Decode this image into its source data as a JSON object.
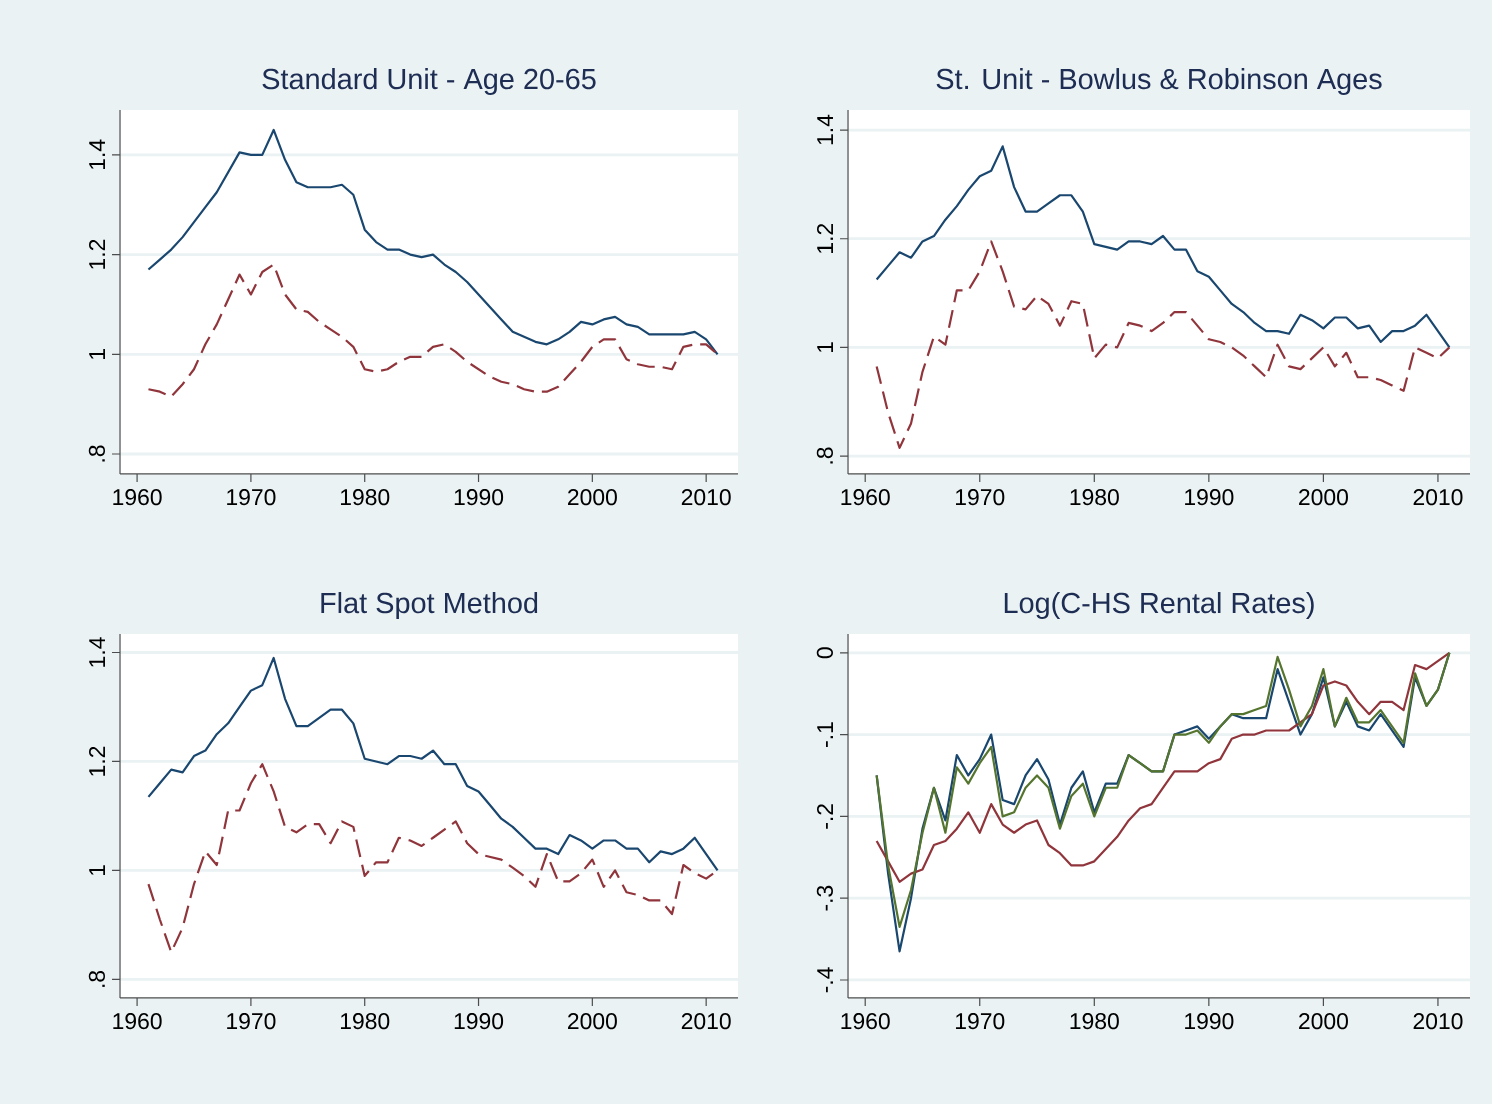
{
  "chart_data": [
    {
      "type": "line",
      "title": "Standard Unit - Age 20-65",
      "x": [
        1961,
        1962,
        1963,
        1964,
        1965,
        1966,
        1967,
        1968,
        1969,
        1970,
        1971,
        1972,
        1973,
        1974,
        1975,
        1976,
        1977,
        1978,
        1979,
        1980,
        1981,
        1982,
        1983,
        1984,
        1985,
        1986,
        1987,
        1988,
        1989,
        1990,
        1991,
        1992,
        1993,
        1994,
        1995,
        1996,
        1997,
        1998,
        1999,
        2000,
        2001,
        2002,
        2003,
        2004,
        2005,
        2006,
        2007,
        2008,
        2009,
        2010,
        2011
      ],
      "xlim": [
        1958.5,
        2012.8
      ],
      "xticks": [
        1960,
        1970,
        1980,
        1990,
        2000,
        2010
      ],
      "ylim": [
        0.76,
        1.49
      ],
      "yticks": [
        {
          "value": 0.8,
          "label": ".8"
        },
        1,
        1.2,
        1.4
      ],
      "grid": "y",
      "series": [
        {
          "color": "#1a476f",
          "line_style": "solid",
          "values": [
            1.17,
            1.19,
            1.21,
            1.235,
            1.265,
            1.295,
            1.325,
            1.365,
            1.405,
            1.4,
            1.4,
            1.45,
            1.39,
            1.345,
            1.335,
            1.335,
            1.335,
            1.34,
            1.32,
            1.25,
            1.225,
            1.21,
            1.21,
            1.2,
            1.195,
            1.2,
            1.18,
            1.165,
            1.145,
            1.12,
            1.095,
            1.07,
            1.045,
            1.035,
            1.025,
            1.02,
            1.03,
            1.045,
            1.065,
            1.06,
            1.07,
            1.075,
            1.06,
            1.055,
            1.04,
            1.04,
            1.04,
            1.04,
            1.045,
            1.03,
            1.0
          ]
        },
        {
          "color": "#90353b",
          "line_style": "dashed",
          "values": [
            0.93,
            0.925,
            0.915,
            0.94,
            0.97,
            1.02,
            1.06,
            1.11,
            1.16,
            1.12,
            1.165,
            1.18,
            1.12,
            1.09,
            1.085,
            1.065,
            1.05,
            1.035,
            1.015,
            0.97,
            0.965,
            0.97,
            0.985,
            0.995,
            0.995,
            1.015,
            1.02,
            1.005,
            0.985,
            0.97,
            0.955,
            0.945,
            0.94,
            0.93,
            0.925,
            0.925,
            0.935,
            0.96,
            0.985,
            1.015,
            1.03,
            1.03,
            0.99,
            0.98,
            0.975,
            0.975,
            0.97,
            1.015,
            1.02,
            1.02,
            1.0
          ]
        }
      ]
    },
    {
      "type": "line",
      "title": "St. Unit - Bowlus & Robinson Ages",
      "x": [
        1961,
        1962,
        1963,
        1964,
        1965,
        1966,
        1967,
        1968,
        1969,
        1970,
        1971,
        1972,
        1973,
        1974,
        1975,
        1976,
        1977,
        1978,
        1979,
        1980,
        1981,
        1982,
        1983,
        1984,
        1985,
        1986,
        1987,
        1988,
        1989,
        1990,
        1991,
        1992,
        1993,
        1994,
        1995,
        1996,
        1997,
        1998,
        1999,
        2000,
        2001,
        2002,
        2003,
        2004,
        2005,
        2006,
        2007,
        2008,
        2009,
        2010,
        2011
      ],
      "xlim": [
        1958.5,
        2012.8
      ],
      "xticks": [
        1960,
        1970,
        1980,
        1990,
        2000,
        2010
      ],
      "ylim": [
        0.767,
        1.437
      ],
      "yticks": [
        {
          "value": 0.8,
          "label": ".8"
        },
        1,
        1.2,
        1.4
      ],
      "grid": "y",
      "series": [
        {
          "color": "#1a476f",
          "line_style": "solid",
          "values": [
            1.125,
            1.15,
            1.175,
            1.165,
            1.195,
            1.205,
            1.235,
            1.26,
            1.29,
            1.315,
            1.325,
            1.37,
            1.295,
            1.25,
            1.25,
            1.265,
            1.28,
            1.28,
            1.25,
            1.19,
            1.185,
            1.18,
            1.195,
            1.195,
            1.19,
            1.205,
            1.18,
            1.18,
            1.14,
            1.13,
            1.105,
            1.08,
            1.065,
            1.045,
            1.03,
            1.03,
            1.025,
            1.06,
            1.05,
            1.035,
            1.055,
            1.055,
            1.035,
            1.04,
            1.01,
            1.03,
            1.03,
            1.04,
            1.06,
            1.03,
            1.0
          ]
        },
        {
          "color": "#90353b",
          "line_style": "dashed",
          "values": [
            0.965,
            0.88,
            0.815,
            0.86,
            0.955,
            1.02,
            1.005,
            1.105,
            1.105,
            1.14,
            1.195,
            1.14,
            1.075,
            1.07,
            1.095,
            1.08,
            1.04,
            1.085,
            1.08,
            0.98,
            1.005,
            1.0,
            1.045,
            1.04,
            1.03,
            1.045,
            1.065,
            1.065,
            1.04,
            1.015,
            1.01,
            1.0,
            0.985,
            0.965,
            0.945,
            1.005,
            0.965,
            0.96,
            0.98,
            1.0,
            0.965,
            0.99,
            0.945,
            0.945,
            0.94,
            0.93,
            0.92,
            1.0,
            0.99,
            0.98,
            1.0
          ]
        }
      ]
    },
    {
      "type": "line",
      "title": "Flat Spot Method",
      "x": [
        1961,
        1962,
        1963,
        1964,
        1965,
        1966,
        1967,
        1968,
        1969,
        1970,
        1971,
        1972,
        1973,
        1974,
        1975,
        1976,
        1977,
        1978,
        1979,
        1980,
        1981,
        1982,
        1983,
        1984,
        1985,
        1986,
        1987,
        1988,
        1989,
        1990,
        1991,
        1992,
        1993,
        1994,
        1995,
        1996,
        1997,
        1998,
        1999,
        2000,
        2001,
        2002,
        2003,
        2004,
        2005,
        2006,
        2007,
        2008,
        2009,
        2010,
        2011
      ],
      "xlim": [
        1958.5,
        2012.8
      ],
      "xticks": [
        1960,
        1970,
        1980,
        1990,
        2000,
        2010
      ],
      "ylim": [
        0.766,
        1.434
      ],
      "yticks": [
        {
          "value": 0.8,
          "label": ".8"
        },
        1,
        1.2,
        1.4
      ],
      "grid": "y",
      "series": [
        {
          "color": "#1a476f",
          "line_style": "solid",
          "values": [
            1.135,
            1.16,
            1.185,
            1.18,
            1.21,
            1.22,
            1.25,
            1.27,
            1.3,
            1.33,
            1.34,
            1.39,
            1.315,
            1.265,
            1.265,
            1.28,
            1.295,
            1.295,
            1.27,
            1.205,
            1.2,
            1.195,
            1.21,
            1.21,
            1.205,
            1.22,
            1.195,
            1.195,
            1.155,
            1.145,
            1.12,
            1.095,
            1.08,
            1.06,
            1.04,
            1.04,
            1.03,
            1.065,
            1.055,
            1.04,
            1.055,
            1.055,
            1.04,
            1.04,
            1.015,
            1.035,
            1.03,
            1.04,
            1.06,
            1.03,
            1.0
          ]
        },
        {
          "color": "#90353b",
          "line_style": "dashed",
          "values": [
            0.975,
            0.91,
            0.85,
            0.895,
            0.975,
            1.035,
            1.01,
            1.11,
            1.11,
            1.16,
            1.195,
            1.145,
            1.08,
            1.07,
            1.085,
            1.085,
            1.05,
            1.09,
            1.08,
            0.99,
            1.015,
            1.015,
            1.06,
            1.055,
            1.045,
            1.06,
            1.075,
            1.09,
            1.05,
            1.03,
            1.025,
            1.02,
            1.005,
            0.99,
            0.97,
            1.03,
            0.98,
            0.98,
            0.995,
            1.02,
            0.97,
            1.0,
            0.96,
            0.955,
            0.945,
            0.945,
            0.92,
            1.01,
            0.995,
            0.985,
            1.0
          ]
        }
      ]
    },
    {
      "type": "line",
      "title": "Log(C-HS Rental Rates)",
      "x": [
        1961,
        1962,
        1963,
        1964,
        1965,
        1966,
        1967,
        1968,
        1969,
        1970,
        1971,
        1972,
        1973,
        1974,
        1975,
        1976,
        1977,
        1978,
        1979,
        1980,
        1981,
        1982,
        1983,
        1984,
        1985,
        1986,
        1987,
        1988,
        1989,
        1990,
        1991,
        1992,
        1993,
        1994,
        1995,
        1996,
        1997,
        1998,
        1999,
        2000,
        2001,
        2002,
        2003,
        2004,
        2005,
        2006,
        2007,
        2008,
        2009,
        2010,
        2011
      ],
      "xlim": [
        1958.5,
        2012.8
      ],
      "xticks": [
        1960,
        1970,
        1980,
        1990,
        2000,
        2010
      ],
      "ylim": [
        -0.422,
        0.023
      ],
      "yticks": [
        {
          "value": -0.4,
          "label": "-.4"
        },
        {
          "value": -0.3,
          "label": "-.3"
        },
        {
          "value": -0.2,
          "label": "-.2"
        },
        {
          "value": -0.1,
          "label": "-.1"
        },
        0
      ],
      "grid": "y",
      "series": [
        {
          "color": "#1a476f",
          "line_style": "solid",
          "values": [
            -0.15,
            -0.27,
            -0.365,
            -0.3,
            -0.215,
            -0.165,
            -0.205,
            -0.125,
            -0.15,
            -0.13,
            -0.1,
            -0.18,
            -0.185,
            -0.15,
            -0.13,
            -0.155,
            -0.21,
            -0.165,
            -0.145,
            -0.195,
            -0.16,
            -0.16,
            -0.125,
            -0.135,
            -0.145,
            -0.145,
            -0.1,
            -0.095,
            -0.09,
            -0.105,
            -0.09,
            -0.075,
            -0.08,
            -0.08,
            -0.08,
            -0.02,
            -0.06,
            -0.1,
            -0.075,
            -0.03,
            -0.09,
            -0.06,
            -0.09,
            -0.095,
            -0.075,
            -0.095,
            -0.115,
            -0.03,
            -0.065,
            -0.045,
            0.0
          ]
        },
        {
          "color": "#90353b",
          "line_style": "solid",
          "values": [
            -0.23,
            -0.255,
            -0.28,
            -0.27,
            -0.265,
            -0.235,
            -0.23,
            -0.215,
            -0.195,
            -0.22,
            -0.185,
            -0.21,
            -0.22,
            -0.21,
            -0.205,
            -0.235,
            -0.245,
            -0.26,
            -0.26,
            -0.255,
            -0.24,
            -0.225,
            -0.205,
            -0.19,
            -0.185,
            -0.165,
            -0.145,
            -0.145,
            -0.145,
            -0.135,
            -0.13,
            -0.105,
            -0.1,
            -0.1,
            -0.095,
            -0.095,
            -0.095,
            -0.085,
            -0.075,
            -0.04,
            -0.035,
            -0.04,
            -0.06,
            -0.075,
            -0.06,
            -0.06,
            -0.07,
            -0.015,
            -0.02,
            -0.01,
            0.0
          ]
        },
        {
          "color": "#55752f",
          "line_style": "solid",
          "values": [
            -0.15,
            -0.26,
            -0.335,
            -0.29,
            -0.22,
            -0.165,
            -0.22,
            -0.14,
            -0.16,
            -0.135,
            -0.115,
            -0.2,
            -0.195,
            -0.165,
            -0.15,
            -0.165,
            -0.215,
            -0.175,
            -0.16,
            -0.2,
            -0.165,
            -0.165,
            -0.125,
            -0.135,
            -0.145,
            -0.145,
            -0.1,
            -0.1,
            -0.095,
            -0.11,
            -0.09,
            -0.075,
            -0.075,
            -0.07,
            -0.065,
            -0.005,
            -0.045,
            -0.09,
            -0.065,
            -0.02,
            -0.09,
            -0.055,
            -0.085,
            -0.085,
            -0.07,
            -0.09,
            -0.11,
            -0.025,
            -0.065,
            -0.045,
            0.0
          ]
        }
      ]
    }
  ]
}
